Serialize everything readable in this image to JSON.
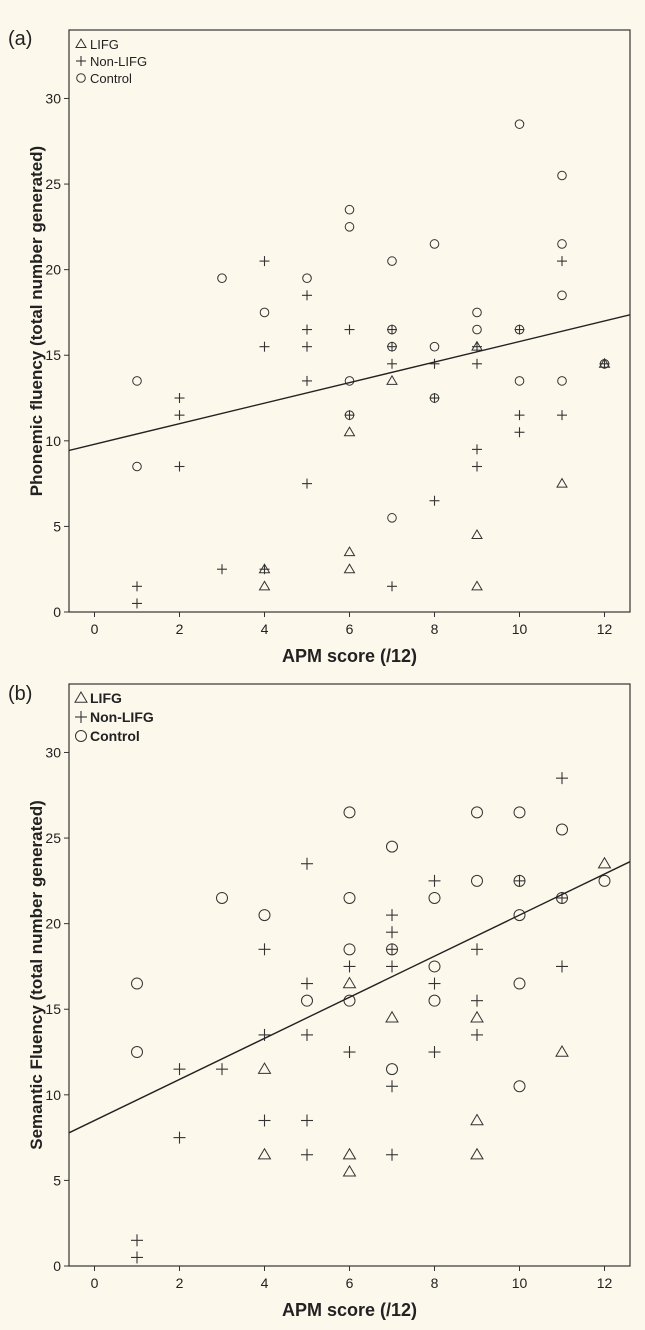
{
  "chart_data": [
    {
      "type": "scatter",
      "panel_label": "(a)",
      "xlabel": "APM score (/12)",
      "ylabel": "Phonemic fluency (total number generated)",
      "xlim": [
        -0.6,
        12.6
      ],
      "ylim": [
        0,
        34
      ],
      "xticks": [
        0,
        2,
        4,
        6,
        8,
        10,
        12
      ],
      "yticks": [
        0,
        5,
        10,
        15,
        20,
        25,
        30
      ],
      "grid": false,
      "legend_position": "top-left",
      "fit_line": {
        "intercept": 9.8,
        "slope": 0.6
      },
      "series": [
        {
          "name": "LIFG",
          "marker": "triangle",
          "points": [
            [
              4,
              2.5
            ],
            [
              4,
              1.5
            ],
            [
              6,
              10.5
            ],
            [
              6,
              3.5
            ],
            [
              6,
              2.5
            ],
            [
              7,
              13.5
            ],
            [
              9,
              15.5
            ],
            [
              9,
              4.5
            ],
            [
              9,
              1.5
            ],
            [
              11,
              7.5
            ],
            [
              12,
              14.5
            ]
          ]
        },
        {
          "name": "Non-LIFG",
          "marker": "plus",
          "points": [
            [
              1,
              1.5
            ],
            [
              1,
              0.5
            ],
            [
              2,
              12.5
            ],
            [
              2,
              11.5
            ],
            [
              2,
              8.5
            ],
            [
              3,
              2.5
            ],
            [
              4,
              20.5
            ],
            [
              4,
              15.5
            ],
            [
              4,
              2.5
            ],
            [
              5,
              18.5
            ],
            [
              5,
              16.5
            ],
            [
              5,
              15.5
            ],
            [
              5,
              13.5
            ],
            [
              5,
              7.5
            ],
            [
              6,
              16.5
            ],
            [
              6,
              11.5
            ],
            [
              7,
              16.5
            ],
            [
              7,
              15.5
            ],
            [
              7,
              14.5
            ],
            [
              7,
              1.5
            ],
            [
              8,
              14.5
            ],
            [
              8,
              12.5
            ],
            [
              8,
              6.5
            ],
            [
              9,
              15.5
            ],
            [
              9,
              14.5
            ],
            [
              9,
              9.5
            ],
            [
              9,
              8.5
            ],
            [
              10,
              16.5
            ],
            [
              10,
              11.5
            ],
            [
              10,
              10.5
            ],
            [
              11,
              20.5
            ],
            [
              11,
              11.5
            ],
            [
              12,
              14.5
            ]
          ]
        },
        {
          "name": "Control",
          "marker": "circle",
          "points": [
            [
              1,
              13.5
            ],
            [
              1,
              8.5
            ],
            [
              3,
              19.5
            ],
            [
              4,
              17.5
            ],
            [
              5,
              19.5
            ],
            [
              6,
              23.5
            ],
            [
              6,
              22.5
            ],
            [
              6,
              13.5
            ],
            [
              6,
              11.5
            ],
            [
              7,
              20.5
            ],
            [
              7,
              16.5
            ],
            [
              7,
              15.5
            ],
            [
              7,
              5.5
            ],
            [
              8,
              21.5
            ],
            [
              8,
              15.5
            ],
            [
              8,
              12.5
            ],
            [
              9,
              17.5
            ],
            [
              9,
              16.5
            ],
            [
              10,
              28.5
            ],
            [
              10,
              16.5
            ],
            [
              10,
              13.5
            ],
            [
              11,
              25.5
            ],
            [
              11,
              21.5
            ],
            [
              11,
              18.5
            ],
            [
              11,
              13.5
            ],
            [
              12,
              14.5
            ]
          ]
        }
      ]
    },
    {
      "type": "scatter",
      "panel_label": "(b)",
      "xlabel": "APM score (/12)",
      "ylabel": "Semantic Fluency (total number generated)",
      "xlim": [
        -0.6,
        12.6
      ],
      "ylim": [
        0,
        34
      ],
      "xticks": [
        0,
        2,
        4,
        6,
        8,
        10,
        12
      ],
      "yticks": [
        0,
        5,
        10,
        15,
        20,
        25,
        30
      ],
      "grid": false,
      "legend_position": "top-left",
      "fit_line": {
        "intercept": 8.5,
        "slope": 1.2
      },
      "series": [
        {
          "name": "LIFG",
          "marker": "triangle",
          "points": [
            [
              4,
              11.5
            ],
            [
              4,
              6.5
            ],
            [
              6,
              16.5
            ],
            [
              6,
              6.5
            ],
            [
              6,
              5.5
            ],
            [
              7,
              14.5
            ],
            [
              9,
              14.5
            ],
            [
              9,
              8.5
            ],
            [
              9,
              6.5
            ],
            [
              11,
              12.5
            ],
            [
              12,
              23.5
            ]
          ]
        },
        {
          "name": "Non-LIFG",
          "marker": "plus",
          "points": [
            [
              1,
              1.5
            ],
            [
              1,
              0.5
            ],
            [
              2,
              11.5
            ],
            [
              2,
              7.5
            ],
            [
              3,
              11.5
            ],
            [
              4,
              18.5
            ],
            [
              4,
              13.5
            ],
            [
              4,
              8.5
            ],
            [
              5,
              23.5
            ],
            [
              5,
              16.5
            ],
            [
              5,
              13.5
            ],
            [
              5,
              8.5
            ],
            [
              5,
              6.5
            ],
            [
              6,
              17.5
            ],
            [
              6,
              12.5
            ],
            [
              7,
              20.5
            ],
            [
              7,
              19.5
            ],
            [
              7,
              18.5
            ],
            [
              7,
              17.5
            ],
            [
              7,
              10.5
            ],
            [
              7,
              6.5
            ],
            [
              8,
              22.5
            ],
            [
              8,
              16.5
            ],
            [
              8,
              12.5
            ],
            [
              9,
              18.5
            ],
            [
              9,
              15.5
            ],
            [
              9,
              13.5
            ],
            [
              10,
              22.5
            ],
            [
              11,
              28.5
            ],
            [
              11,
              21.5
            ],
            [
              11,
              17.5
            ]
          ]
        },
        {
          "name": "Control",
          "marker": "circle",
          "points": [
            [
              1,
              16.5
            ],
            [
              1,
              12.5
            ],
            [
              3,
              21.5
            ],
            [
              4,
              20.5
            ],
            [
              5,
              15.5
            ],
            [
              6,
              26.5
            ],
            [
              6,
              21.5
            ],
            [
              6,
              18.5
            ],
            [
              6,
              15.5
            ],
            [
              7,
              24.5
            ],
            [
              7,
              18.5
            ],
            [
              7,
              11.5
            ],
            [
              8,
              21.5
            ],
            [
              8,
              17.5
            ],
            [
              8,
              15.5
            ],
            [
              9,
              26.5
            ],
            [
              9,
              22.5
            ],
            [
              10,
              26.5
            ],
            [
              10,
              22.5
            ],
            [
              10,
              20.5
            ],
            [
              10,
              16.5
            ],
            [
              10,
              10.5
            ],
            [
              11,
              25.5
            ],
            [
              11,
              21.5
            ],
            [
              12,
              22.5
            ]
          ]
        }
      ]
    }
  ]
}
